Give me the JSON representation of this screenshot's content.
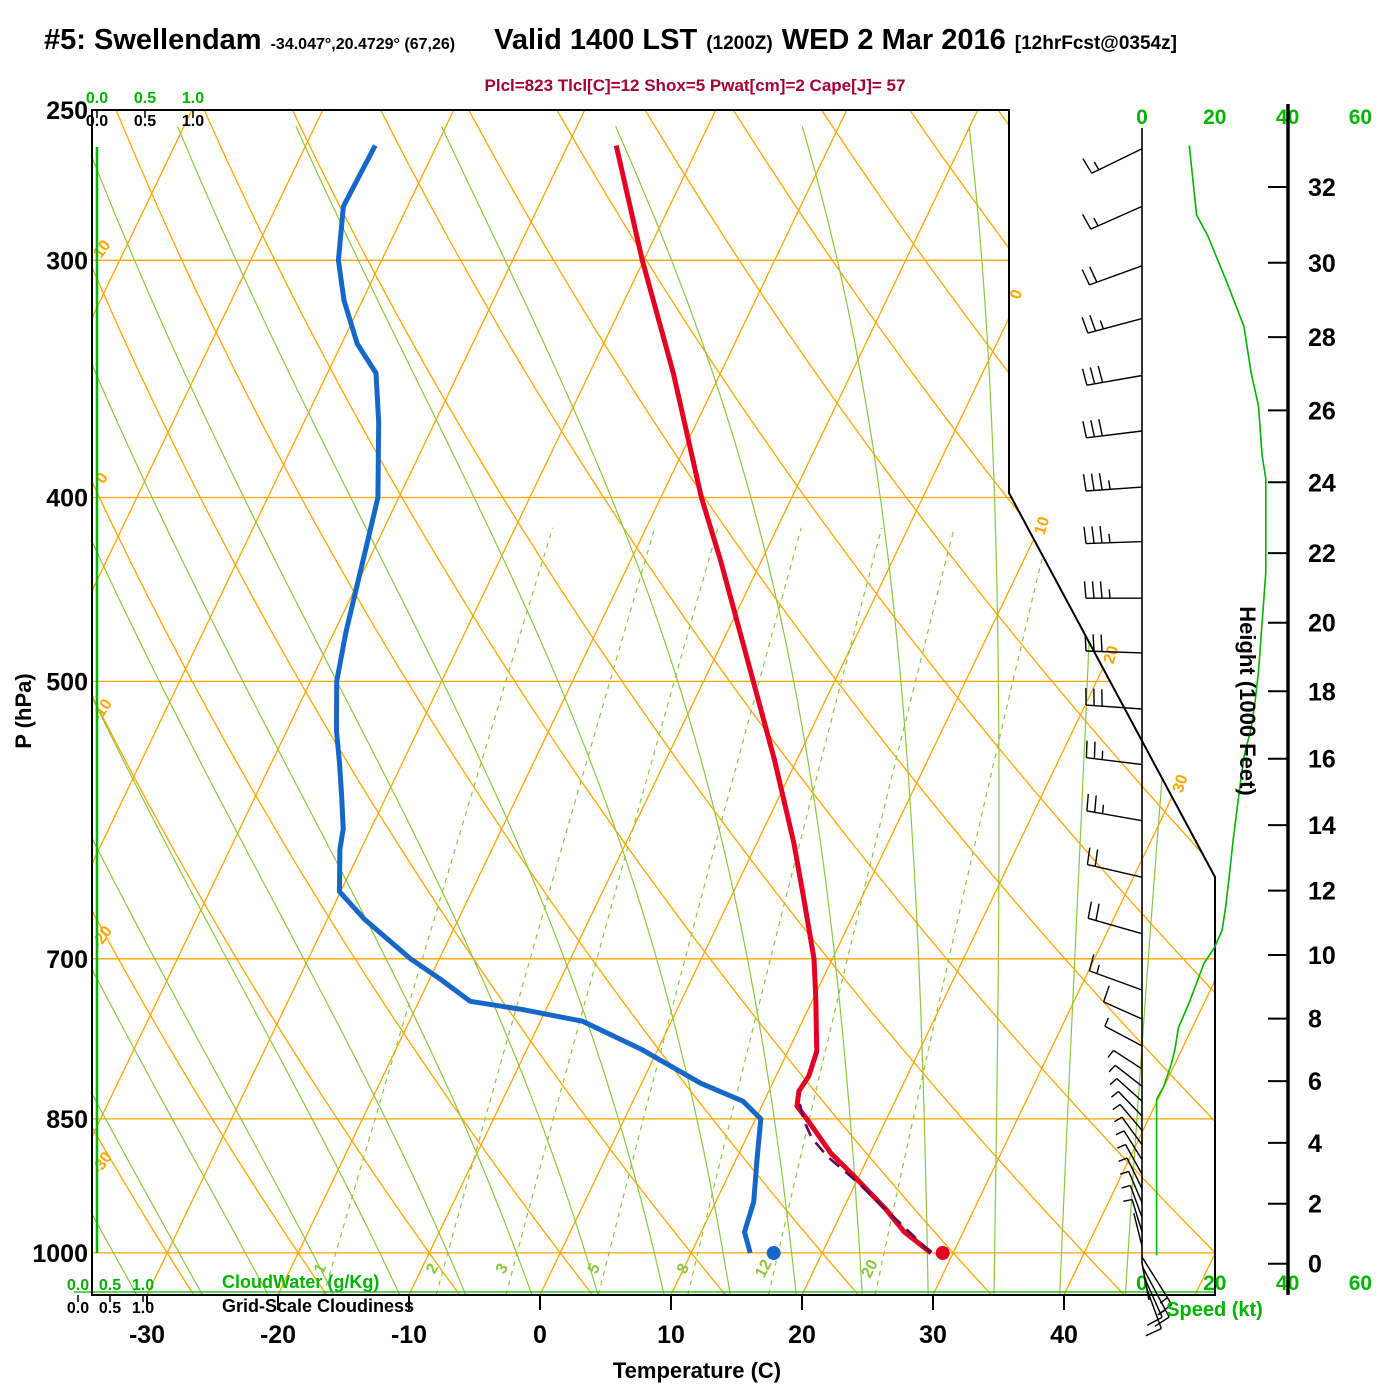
{
  "header": {
    "station": "#5: Swellendam",
    "coords": "-34.047°,20.4729° (67,26)",
    "valid1": "Valid 1400 LST",
    "zulu": "(1200Z)",
    "valid2": "WED 2 Mar 2016",
    "fcst": "[12hrFcst@0354z]"
  },
  "indices_line": "Plcl=823 Tlcl[C]=12 Shox=5 Pwat[cm]=2 Cape[J]= 57",
  "indices": {
    "plcl_hpa": 823,
    "tlcl_c": 12,
    "shox": 5,
    "pwat_cm": 2,
    "cape_j": 57
  },
  "axes": {
    "pressure": {
      "label": "P (hPa)",
      "ticks": [
        250,
        300,
        400,
        500,
        700,
        850,
        1000
      ]
    },
    "temperature": {
      "label": "Temperature (C)",
      "ticks": [
        -30,
        -20,
        -10,
        0,
        10,
        20,
        30,
        40
      ]
    },
    "height": {
      "label": "Height (1000 Feet)",
      "ticks": [
        0,
        2,
        4,
        6,
        8,
        10,
        12,
        14,
        16,
        18,
        20,
        22,
        24,
        26,
        28,
        30,
        32
      ]
    },
    "speed": {
      "label": "Speed (kt)",
      "ticks": [
        0,
        20,
        40,
        60
      ]
    },
    "cloudwater": {
      "label": "CloudWater (g/Kg)",
      "ticks": [
        "0.0",
        "0.5",
        "1.0"
      ]
    },
    "cloudiness": {
      "label": "Grid-Scale Cloudiness",
      "ticks": [
        "0.0",
        "0.5",
        "1.0"
      ]
    }
  },
  "colors": {
    "temperature": "#e30022",
    "dewpoint": "#1568c8",
    "parcel": "#5e0b54",
    "grid_orange": "#ffa500",
    "grid_green": "#8cc63f",
    "accent_green": "#00b400",
    "subtitle": "#a50034"
  },
  "chart_data": {
    "type": "line",
    "subtype": "skewt_logp_sounding",
    "title": "#5: Swellendam sounding valid 1400 LST (1200Z) WED 2 Mar 2016",
    "pressure_range_hpa": [
      250,
      1050
    ],
    "temp_axis_range_c": [
      -34,
      51
    ],
    "isobar_lines_hpa": [
      300,
      400,
      500,
      700,
      850,
      1000
    ],
    "isotherm_step_c": 10,
    "isotherm_edge_labels_c": [
      0,
      10,
      20,
      30
    ],
    "dry_adiabat_edge_labels_c": [
      10,
      0,
      -10,
      -20,
      -30
    ],
    "mixing_ratio_lines_gkg": [
      1,
      2,
      3,
      5,
      8,
      12,
      20
    ],
    "temperature_profile_p_t": [
      [
        261,
        -36.3
      ],
      [
        300,
        -30.1
      ],
      [
        344,
        -23.6
      ],
      [
        400,
        -16.9
      ],
      [
        432,
        -13.1
      ],
      [
        500,
        -6.2
      ],
      [
        550,
        -1.7
      ],
      [
        608,
        2.8
      ],
      [
        652,
        5.7
      ],
      [
        700,
        8.6
      ],
      [
        737,
        10.3
      ],
      [
        761,
        11.3
      ],
      [
        783,
        12.2
      ],
      [
        807,
        12.5
      ],
      [
        822,
        12.3
      ],
      [
        837,
        12.7
      ],
      [
        851,
        14
      ],
      [
        886,
        17
      ],
      [
        911,
        19.6
      ],
      [
        949,
        23.3
      ],
      [
        975,
        25.5
      ],
      [
        1000,
        28.3
      ]
    ],
    "dewpoint_profile_p_t": [
      [
        261,
        -54.7
      ],
      [
        281,
        -54.9
      ],
      [
        300,
        -53.3
      ],
      [
        315,
        -51.4
      ],
      [
        332,
        -48.8
      ],
      [
        344,
        -46.3
      ],
      [
        365,
        -44.3
      ],
      [
        400,
        -41.6
      ],
      [
        424,
        -40.7
      ],
      [
        471,
        -39.1
      ],
      [
        500,
        -38
      ],
      [
        531,
        -36.2
      ],
      [
        552,
        -34.8
      ],
      [
        575,
        -33.4
      ],
      [
        598,
        -32.1
      ],
      [
        613,
        -31.6
      ],
      [
        645,
        -30.1
      ],
      [
        667,
        -27.2
      ],
      [
        700,
        -22.2
      ],
      [
        718,
        -19.1
      ],
      [
        737,
        -16.1
      ],
      [
        744,
        -12
      ],
      [
        755,
        -6.8
      ],
      [
        781,
        -1.3
      ],
      [
        814,
        4.5
      ],
      [
        832,
        8.4
      ],
      [
        850,
        10.4
      ],
      [
        893,
        11.6
      ],
      [
        940,
        12.9
      ],
      [
        975,
        13.3
      ],
      [
        1000,
        14.5
      ]
    ],
    "parcel_path_p_t": [
      [
        1000,
        28.3
      ],
      [
        944,
        22.8
      ],
      [
        916,
        19.9
      ],
      [
        890,
        16.9
      ],
      [
        870,
        15
      ],
      [
        851,
        13.7
      ],
      [
        834,
        12.8
      ]
    ],
    "surface": {
      "temperature_c": 29.2,
      "dewpoint_c": 16.3
    },
    "cloud_water_profile": "0 g/kg at all levels (line on 0.0)",
    "wind_speed_profile_p_kt": [
      [
        261,
        13
      ],
      [
        284,
        15
      ],
      [
        291,
        18
      ],
      [
        307,
        23
      ],
      [
        325,
        28
      ],
      [
        344,
        30
      ],
      [
        358,
        32
      ],
      [
        380,
        33
      ],
      [
        391,
        34
      ],
      [
        412,
        34
      ],
      [
        438,
        34
      ],
      [
        494,
        32
      ],
      [
        514,
        31
      ],
      [
        529,
        30
      ],
      [
        548,
        28
      ],
      [
        566,
        27
      ],
      [
        607,
        25
      ],
      [
        632,
        24
      ],
      [
        657,
        23
      ],
      [
        676,
        22
      ],
      [
        690,
        20
      ],
      [
        704,
        17
      ],
      [
        738,
        13
      ],
      [
        761,
        10
      ],
      [
        782,
        9
      ],
      [
        796,
        8
      ],
      [
        817,
        6
      ],
      [
        830,
        4
      ],
      [
        861,
        4
      ],
      [
        904,
        4
      ],
      [
        941,
        4
      ],
      [
        979,
        4
      ],
      [
        1003,
        4
      ]
    ],
    "wind_barbs_p_dir_kt": [
      [
        262,
        244,
        15
      ],
      [
        281,
        246,
        15
      ],
      [
        302,
        250,
        20
      ],
      [
        322,
        255,
        25
      ],
      [
        345,
        260,
        30
      ],
      [
        369,
        263,
        32
      ],
      [
        395,
        266,
        35
      ],
      [
        422,
        268,
        35
      ],
      [
        452,
        270,
        35
      ],
      [
        483,
        272,
        33
      ],
      [
        517,
        274,
        30
      ],
      [
        553,
        277,
        28
      ],
      [
        592,
        280,
        25
      ],
      [
        634,
        283,
        23
      ],
      [
        679,
        286,
        20
      ],
      [
        727,
        290,
        15
      ],
      [
        753,
        294,
        12
      ],
      [
        778,
        298,
        8
      ],
      [
        800,
        303,
        6
      ],
      [
        817,
        308,
        5
      ],
      [
        832,
        312,
        5
      ],
      [
        847,
        316,
        5
      ],
      [
        862,
        320,
        5
      ],
      [
        877,
        324,
        5
      ],
      [
        893,
        328,
        4
      ],
      [
        909,
        331,
        4
      ],
      [
        925,
        334,
        4
      ],
      [
        941,
        337,
        4
      ],
      [
        958,
        340,
        4
      ],
      [
        975,
        343,
        4
      ],
      [
        992,
        346,
        3
      ],
      [
        1005,
        148,
        15
      ],
      [
        1018,
        152,
        15
      ],
      [
        1032,
        156,
        10
      ],
      [
        1045,
        160,
        10
      ]
    ],
    "legend_position": "none",
    "grid": true
  }
}
